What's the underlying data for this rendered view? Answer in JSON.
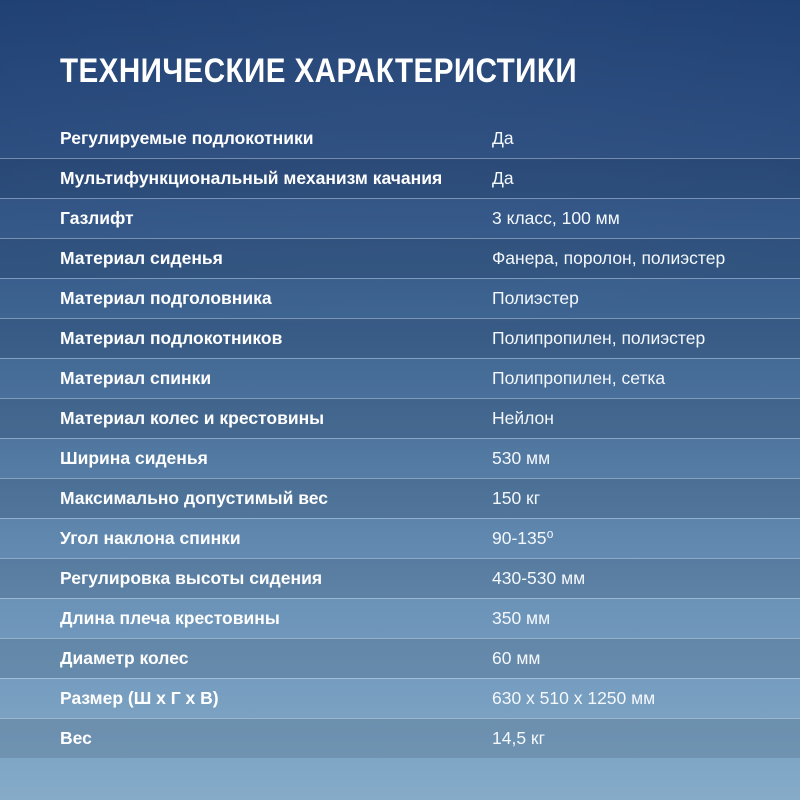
{
  "title": "ТЕХНИЧЕСКИЕ ХАРАКТЕРИСТИКИ",
  "colors": {
    "background_top": "#1d3e72",
    "background_bottom": "#85abc9",
    "text": "#ffffff",
    "row_separator": "rgba(228,240,252,0.40)",
    "alt_row_overlay": "rgba(6,20,46,0.13)"
  },
  "rows": [
    {
      "label": "Регулируемые подлокотники",
      "value": "Да"
    },
    {
      "label": "Мультифункциональный механизм качания",
      "value": "Да"
    },
    {
      "label": "Газлифт",
      "value": "3 класс, 100 мм"
    },
    {
      "label": "Материал сиденья",
      "value": "Фанера, поролон, полиэстер"
    },
    {
      "label": "Материал подголовника",
      "value": "Полиэстер"
    },
    {
      "label": "Материал подлокотников",
      "value": "Полипропилен, полиэстер"
    },
    {
      "label": "Материал спинки",
      "value": "Полипропилен, сетка"
    },
    {
      "label": "Материал колес и крестовины",
      "value": "Нейлон"
    },
    {
      "label": "Ширина сиденья",
      "value": "530 мм"
    },
    {
      "label": "Максимально допустимый вес",
      "value": "150 кг"
    },
    {
      "label": "Угол наклона спинки",
      "value": "90-135⁰"
    },
    {
      "label": "Регулировка высоты сидения",
      "value": "430-530 мм"
    },
    {
      "label": "Длина плеча крестовины",
      "value": "350 мм"
    },
    {
      "label": "Диаметр колес",
      "value": "60 мм"
    },
    {
      "label": "Размер (Ш х Г х В)",
      "value": "630 х 510 х 1250 мм"
    },
    {
      "label": "Вес",
      "value": "14,5 кг"
    }
  ]
}
